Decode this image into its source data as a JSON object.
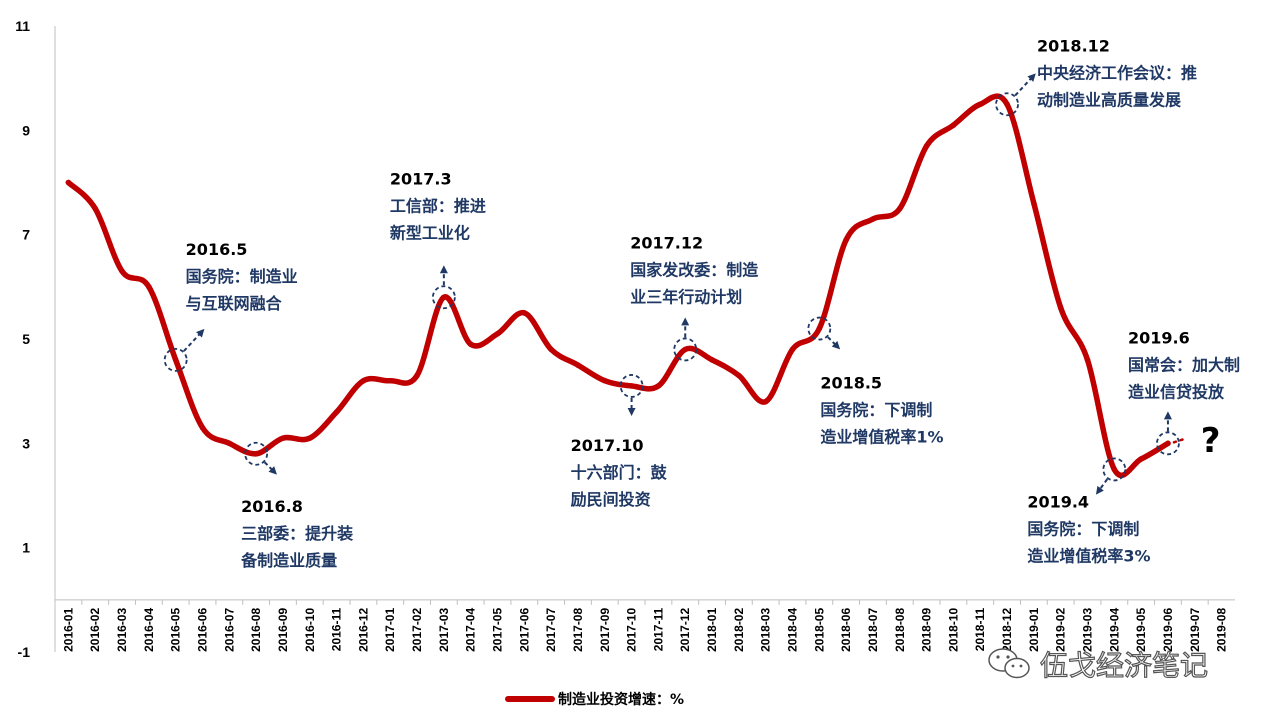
{
  "chart_data": {
    "type": "line",
    "title": "",
    "xlabel": "",
    "ylabel": "",
    "ylim": [
      -1,
      11
    ],
    "yticks": [
      -1,
      1,
      3,
      5,
      7,
      9,
      11
    ],
    "categories": [
      "2016-01",
      "2016-02",
      "2016-03",
      "2016-04",
      "2016-05",
      "2016-06",
      "2016-07",
      "2016-08",
      "2016-09",
      "2016-10",
      "2016-11",
      "2016-12",
      "2017-01",
      "2017-02",
      "2017-03",
      "2017-04",
      "2017-05",
      "2017-06",
      "2017-07",
      "2017-08",
      "2017-09",
      "2017-10",
      "2017-11",
      "2017-12",
      "2018-01",
      "2018-02",
      "2018-03",
      "2018-04",
      "2018-05",
      "2018-06",
      "2018-07",
      "2018-08",
      "2018-09",
      "2018-10",
      "2018-11",
      "2018-12",
      "2019-01",
      "2019-02",
      "2019-03",
      "2019-04",
      "2019-05",
      "2019-06",
      "2019-07",
      "2019-08"
    ],
    "series": [
      {
        "name": "制造业投资增速：%",
        "color": "#c00000",
        "values": [
          8.0,
          7.5,
          6.3,
          6.0,
          4.6,
          3.3,
          3.0,
          2.8,
          3.1,
          3.1,
          3.6,
          4.2,
          4.2,
          4.3,
          5.8,
          4.9,
          5.1,
          5.5,
          4.8,
          4.5,
          4.2,
          4.1,
          4.1,
          4.8,
          4.6,
          4.3,
          3.8,
          4.8,
          5.2,
          6.9,
          7.3,
          7.5,
          8.7,
          9.1,
          9.5,
          9.5,
          7.6,
          5.6,
          4.6,
          2.5,
          2.7,
          3.0,
          null,
          null
        ]
      }
    ],
    "trend_extension": {
      "from": "2019-06",
      "to": "2019-07",
      "value": 3.1
    },
    "question_mark": "?",
    "annotations": [
      {
        "category": "2016-05",
        "value": 4.6,
        "date": "2016.5",
        "lines": [
          "国务院：制造业",
          "与互联网融合"
        ],
        "arrow": "up-right"
      },
      {
        "category": "2016-08",
        "value": 2.8,
        "date": "2016.8",
        "lines": [
          "三部委：提升装",
          "备制造业质量"
        ],
        "arrow": "down-right"
      },
      {
        "category": "2017-03",
        "value": 5.8,
        "date": "2017.3",
        "lines": [
          "工信部：推进",
          "新型工业化"
        ],
        "arrow": "up"
      },
      {
        "category": "2017-10",
        "value": 4.1,
        "date": "2017.10",
        "lines": [
          "十六部门：鼓",
          "励民间投资"
        ],
        "arrow": "down"
      },
      {
        "category": "2017-12",
        "value": 4.8,
        "date": "2017.12",
        "lines": [
          "国家发改委：制造",
          "业三年行动计划"
        ],
        "arrow": "up"
      },
      {
        "category": "2018-05",
        "value": 5.2,
        "date": "2018.5",
        "lines": [
          "国务院：下调制",
          "造业增值税率1%"
        ],
        "arrow": "down-right"
      },
      {
        "category": "2018-12",
        "value": 9.5,
        "date": "2018.12",
        "lines": [
          "中央经济工作会议：推",
          "动制造业高质量发展"
        ],
        "arrow": "up-right"
      },
      {
        "category": "2019-04",
        "value": 2.5,
        "date": "2019.4",
        "lines": [
          "国务院：下调制",
          "造业增值税率3%"
        ],
        "arrow": "down-left"
      },
      {
        "category": "2019-06",
        "value": 3.0,
        "date": "2019.6",
        "lines": [
          "国常会：加大制",
          "造业信贷投放"
        ],
        "arrow": "up"
      }
    ],
    "legend": {
      "position": "bottom-center",
      "label": "制造业投资增速：%"
    }
  },
  "watermark": {
    "text": "伍戈经济笔记",
    "icon": "wechat-icon"
  }
}
